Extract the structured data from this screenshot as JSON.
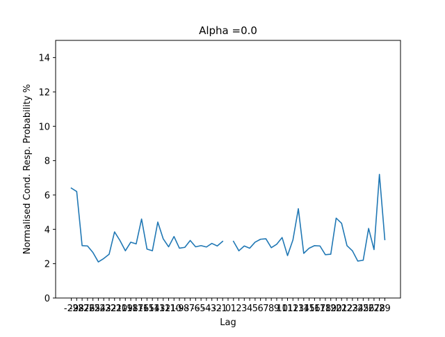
{
  "chart_data": {
    "type": "line",
    "title": "Alpha =0.0",
    "xlabel": "Lag",
    "ylabel": "Normalised Cond. Resp. Probability %",
    "ylim": [
      0,
      15
    ],
    "yticks": [
      0,
      2,
      4,
      6,
      8,
      10,
      12,
      14
    ],
    "grid": false,
    "line_color": "#1f77b4",
    "x": [
      -29,
      -28,
      -27,
      -26,
      -25,
      -24,
      -23,
      -22,
      -21,
      -20,
      -19,
      -18,
      -17,
      -16,
      -15,
      -14,
      -13,
      -12,
      -11,
      -10,
      -9,
      -8,
      -7,
      -6,
      -5,
      -4,
      -3,
      -2,
      -1,
      0,
      1,
      2,
      3,
      4,
      5,
      6,
      7,
      8,
      9,
      10,
      11,
      12,
      13,
      14,
      15,
      16,
      17,
      18,
      19,
      20,
      21,
      22,
      23,
      24,
      25,
      26,
      27,
      28,
      29
    ],
    "series": [
      {
        "values": [
          6.4,
          6.2,
          3.05,
          3.03,
          2.65,
          2.1,
          2.3,
          2.55,
          3.85,
          3.35,
          2.75,
          3.25,
          3.15,
          4.6,
          2.85,
          2.75,
          4.42,
          3.45,
          2.98,
          3.58,
          2.9,
          2.95,
          3.35,
          2.98,
          3.05,
          2.97,
          3.18,
          3.03,
          3.3,
          null,
          3.3,
          2.75,
          3.03,
          2.9,
          3.25,
          3.42,
          3.45,
          2.93,
          3.13,
          3.52,
          2.47,
          3.38,
          5.2,
          2.6,
          2.9,
          3.05,
          3.03,
          2.52,
          2.55,
          4.65,
          4.35,
          3.05,
          2.75,
          2.15,
          2.2,
          4.05,
          2.82,
          7.2,
          3.4
        ]
      }
    ]
  }
}
